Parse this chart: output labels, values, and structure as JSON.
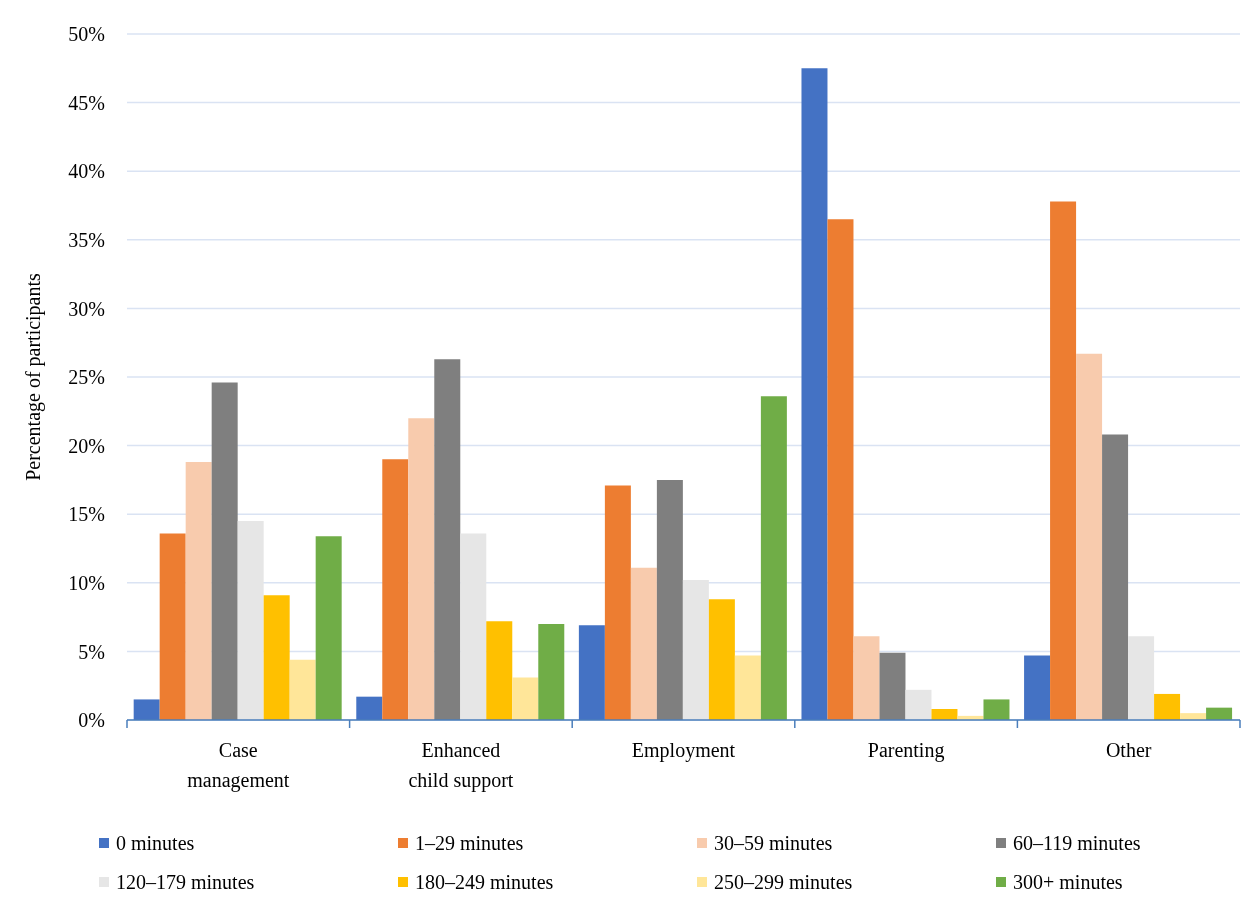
{
  "chart_data": {
    "type": "bar",
    "ylabel": "Percentage of participants",
    "categories": [
      "Case management",
      "Enhanced child support",
      "Employment",
      "Parenting",
      "Other"
    ],
    "series": [
      {
        "name": "0 minutes",
        "color": "#4472c4",
        "values": [
          1.5,
          1.7,
          6.9,
          47.5,
          4.7
        ]
      },
      {
        "name": "1–29 minutes",
        "color": "#ed7d31",
        "values": [
          13.6,
          19.0,
          17.1,
          36.5,
          37.8
        ]
      },
      {
        "name": "30–59 minutes",
        "color": "#f8cbad",
        "values": [
          18.8,
          22.0,
          11.1,
          6.1,
          26.7
        ]
      },
      {
        "name": "60–119 minutes",
        "color": "#7f7f7f",
        "values": [
          24.6,
          26.3,
          17.5,
          4.9,
          20.8
        ]
      },
      {
        "name": "120–179 minutes",
        "color": "#e6e6e6",
        "values": [
          14.5,
          13.6,
          10.2,
          2.2,
          6.1
        ]
      },
      {
        "name": "180–249 minutes",
        "color": "#ffc000",
        "values": [
          9.1,
          7.2,
          8.8,
          0.8,
          1.9
        ]
      },
      {
        "name": "250–299 minutes",
        "color": "#ffe699",
        "values": [
          4.4,
          3.1,
          4.7,
          0.3,
          0.5
        ]
      },
      {
        "name": "300+ minutes",
        "color": "#70ad47",
        "values": [
          13.4,
          7.0,
          23.6,
          1.5,
          0.9
        ]
      }
    ],
    "ylim": [
      0,
      50
    ],
    "yticks": [
      {
        "value": 0,
        "label": "0%"
      },
      {
        "value": 5,
        "label": "5%"
      },
      {
        "value": 10,
        "label": "10%"
      },
      {
        "value": 15,
        "label": "15%"
      },
      {
        "value": 20,
        "label": "20%"
      },
      {
        "value": 25,
        "label": "25%"
      },
      {
        "value": 30,
        "label": "30%"
      },
      {
        "value": 35,
        "label": "35%"
      },
      {
        "value": 40,
        "label": "40%"
      },
      {
        "value": 45,
        "label": "45%"
      },
      {
        "value": 50,
        "label": "50%"
      }
    ],
    "grid": "y",
    "legend": "bottom"
  }
}
